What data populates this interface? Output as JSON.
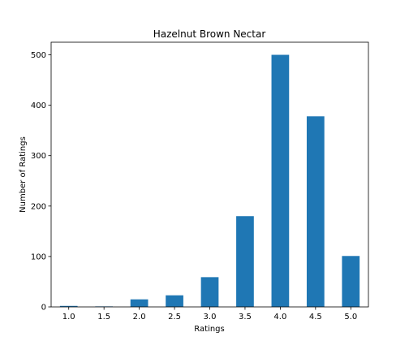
{
  "chart_data": {
    "type": "bar",
    "title": "Hazelnut Brown Nectar",
    "xlabel": "Ratings",
    "ylabel": "Number of Ratings",
    "categories": [
      "1.0",
      "1.5",
      "2.0",
      "2.5",
      "3.0",
      "3.5",
      "4.0",
      "4.5",
      "5.0"
    ],
    "values": [
      2,
      1,
      15,
      23,
      59,
      180,
      500,
      378,
      101
    ],
    "ylim": [
      0,
      525
    ],
    "yticks": [
      0,
      100,
      200,
      300,
      400,
      500
    ],
    "grid": false,
    "legend": "none",
    "bar_color": "#1f77b4"
  }
}
